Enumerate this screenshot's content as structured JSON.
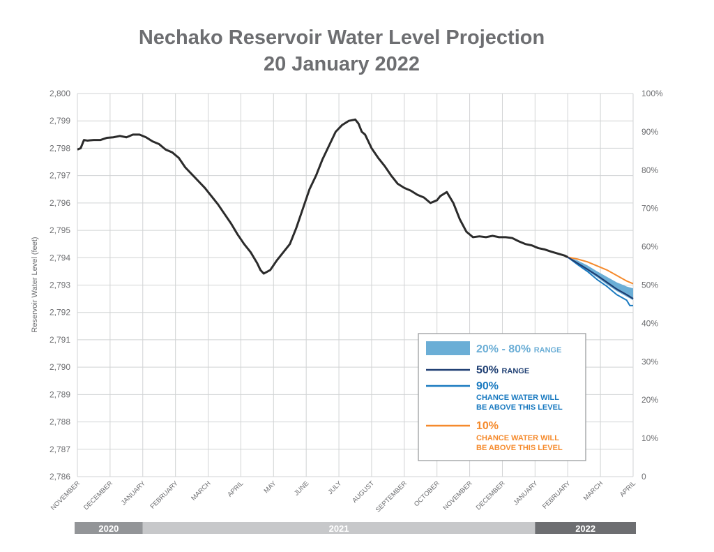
{
  "chart_data": {
    "type": "line",
    "title": "Nechako Reservoir Water Level Projection",
    "subtitle": "20 January 2022",
    "ylabel": "Reservoir Water Level (feet)",
    "ylim": [
      2786,
      2800
    ],
    "y_ticks": [
      "2,786",
      "2,787",
      "2,788",
      "2,789",
      "2,790",
      "2,791",
      "2,792",
      "2,793",
      "2,794",
      "2,795",
      "2,796",
      "2,797",
      "2,798",
      "2,799",
      "2,800"
    ],
    "y2lim": [
      0,
      100
    ],
    "y2_ticks": [
      "0",
      "10%",
      "20%",
      "30%",
      "40%",
      "50%",
      "60%",
      "70%",
      "80%",
      "90%",
      "100%"
    ],
    "x_labels": [
      "NOVEMBER",
      "DECEMBER",
      "JANUARY",
      "FEBRUARY",
      "MARCH",
      "APRIL",
      "MAY",
      "JUNE",
      "JULY",
      "AUGUST",
      "SEPTEMBER",
      "OCTOBER",
      "NOVEMBER",
      "DECEMBER",
      "JANUARY",
      "FEBRUARY",
      "MARCH",
      "APRIL"
    ],
    "year_bands": [
      {
        "label": "2020",
        "from": 0,
        "to": 2,
        "color": "#939598"
      },
      {
        "label": "2021",
        "from": 2,
        "to": 14,
        "color": "#c7c8ca"
      },
      {
        "label": "2022",
        "from": 14,
        "to": 17,
        "color": "#6d6e71"
      }
    ],
    "grid": true,
    "legend_position": "bottom-right",
    "legend": [
      {
        "key": "band",
        "value": "20% - 80%",
        "suffix": "RANGE",
        "color": "#6baed6"
      },
      {
        "key": "p50",
        "value": "50%",
        "suffix": "RANGE",
        "color": "#1f3f73"
      },
      {
        "key": "p90",
        "value": "90%",
        "note1": "CHANCE WATER WILL",
        "note2": "BE ABOVE THIS LEVEL",
        "color": "#1a7ac0"
      },
      {
        "key": "p10",
        "value": "10%",
        "note1": "CHANCE WATER WILL",
        "note2": "BE ABOVE THIS LEVEL",
        "color": "#f58a2c"
      }
    ],
    "series": [
      {
        "name": "observed",
        "color": "#2b2b2b",
        "x": [
          0,
          0.1,
          0.2,
          0.3,
          0.5,
          0.7,
          0.9,
          1.1,
          1.3,
          1.5,
          1.7,
          1.9,
          2.1,
          2.3,
          2.5,
          2.7,
          2.9,
          3.1,
          3.3,
          3.5,
          3.7,
          3.9,
          4.1,
          4.3,
          4.5,
          4.7,
          4.9,
          5.1,
          5.3,
          5.5,
          5.6,
          5.7,
          5.9,
          6.1,
          6.3,
          6.5,
          6.7,
          6.9,
          7.1,
          7.3,
          7.5,
          7.7,
          7.9,
          8.1,
          8.3,
          8.5,
          8.6,
          8.7,
          8.8,
          9.0,
          9.2,
          9.4,
          9.6,
          9.8,
          10.0,
          10.2,
          10.4,
          10.6,
          10.8,
          11.0,
          11.1,
          11.3,
          11.5,
          11.7,
          11.9,
          12.1,
          12.3,
          12.5,
          12.7,
          12.9,
          13.1,
          13.3,
          13.5,
          13.7,
          13.9,
          14.1,
          14.3,
          14.5,
          14.7,
          14.9,
          15.0
        ],
        "y": [
          2797.95,
          2798.0,
          2798.3,
          2798.28,
          2798.3,
          2798.3,
          2798.38,
          2798.4,
          2798.45,
          2798.4,
          2798.5,
          2798.5,
          2798.4,
          2798.25,
          2798.15,
          2797.95,
          2797.85,
          2797.65,
          2797.3,
          2797.05,
          2796.8,
          2796.55,
          2796.25,
          2795.95,
          2795.6,
          2795.25,
          2794.85,
          2794.5,
          2794.2,
          2793.8,
          2793.55,
          2793.42,
          2793.55,
          2793.9,
          2794.2,
          2794.5,
          2795.1,
          2795.8,
          2796.5,
          2797.0,
          2797.6,
          2798.1,
          2798.6,
          2798.85,
          2799.0,
          2799.05,
          2798.9,
          2798.6,
          2798.5,
          2798.0,
          2797.65,
          2797.35,
          2797.0,
          2796.7,
          2796.55,
          2796.45,
          2796.3,
          2796.2,
          2796.0,
          2796.1,
          2796.25,
          2796.4,
          2796.0,
          2795.4,
          2794.95,
          2794.75,
          2794.78,
          2794.75,
          2794.8,
          2794.75,
          2794.75,
          2794.72,
          2794.6,
          2794.5,
          2794.45,
          2794.35,
          2794.3,
          2794.22,
          2794.15,
          2794.08,
          2794.02
        ]
      },
      {
        "name": "p50",
        "color": "#1f3f73",
        "x": [
          15.0,
          15.3,
          15.6,
          15.9,
          16.2,
          16.5,
          16.8,
          17.0
        ],
        "y": [
          2794.02,
          2793.8,
          2793.58,
          2793.35,
          2793.1,
          2792.85,
          2792.65,
          2792.5
        ]
      },
      {
        "name": "p90",
        "color": "#1a7ac0",
        "x": [
          15.0,
          15.3,
          15.6,
          15.9,
          16.2,
          16.5,
          16.8,
          16.9,
          17.0
        ],
        "y": [
          2794.02,
          2793.75,
          2793.5,
          2793.2,
          2792.95,
          2792.65,
          2792.45,
          2792.25,
          2792.25
        ]
      },
      {
        "name": "p10",
        "color": "#f58a2c",
        "x": [
          15.0,
          15.3,
          15.6,
          15.9,
          16.2,
          16.5,
          16.8,
          17.0
        ],
        "y": [
          2794.02,
          2793.95,
          2793.85,
          2793.7,
          2793.55,
          2793.35,
          2793.15,
          2793.05
        ]
      },
      {
        "name": "band_upper",
        "color": "#6baed6",
        "x": [
          15.0,
          15.3,
          15.6,
          15.9,
          16.2,
          16.5,
          16.8,
          17.0
        ],
        "y": [
          2794.02,
          2793.9,
          2793.72,
          2793.5,
          2793.3,
          2793.1,
          2792.95,
          2792.88
        ]
      },
      {
        "name": "band_lower",
        "color": "#6baed6",
        "x": [
          15.0,
          15.3,
          15.6,
          15.9,
          16.2,
          16.5,
          16.8,
          17.0
        ],
        "y": [
          2794.02,
          2793.78,
          2793.52,
          2793.28,
          2793.02,
          2792.78,
          2792.58,
          2792.45
        ]
      }
    ]
  }
}
